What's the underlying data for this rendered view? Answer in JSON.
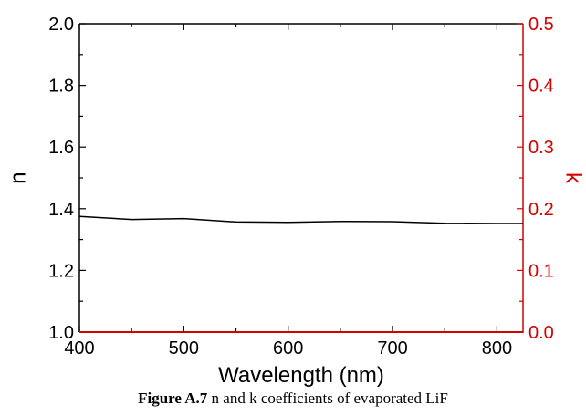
{
  "chart_data": {
    "type": "line",
    "xlabel": "Wavelength (nm)",
    "ylabel_left": "n",
    "ylabel_right": "k",
    "xlim": [
      400,
      825
    ],
    "ylim_left": [
      1.0,
      2.0
    ],
    "ylim_right": [
      0.0,
      0.5
    ],
    "x_ticks": [
      "400",
      "500",
      "600",
      "700",
      "800"
    ],
    "y_left_ticks": [
      "1.0",
      "1.2",
      "1.4",
      "1.6",
      "1.8",
      "2.0"
    ],
    "y_right_ticks": [
      "0.0",
      "0.1",
      "0.2",
      "0.3",
      "0.4",
      "0.5"
    ],
    "right_axis_color": "#d40000",
    "grid": false,
    "series": [
      {
        "axis": "left",
        "color": "#000000",
        "x": [
          400,
          450,
          500,
          550,
          600,
          650,
          700,
          750,
          800,
          825
        ],
        "y": [
          1.375,
          1.365,
          1.368,
          1.357,
          1.356,
          1.359,
          1.358,
          1.353,
          1.352,
          1.352
        ]
      },
      {
        "axis": "right",
        "color": "#d40000",
        "x": [
          400,
          500,
          600,
          700,
          800,
          825
        ],
        "y": [
          0.0,
          0.0,
          0.0,
          0.0,
          0.0,
          0.0
        ]
      }
    ]
  },
  "caption": {
    "label": "Figure A.7",
    "text": " n and k coefficients of evaporated LiF"
  }
}
